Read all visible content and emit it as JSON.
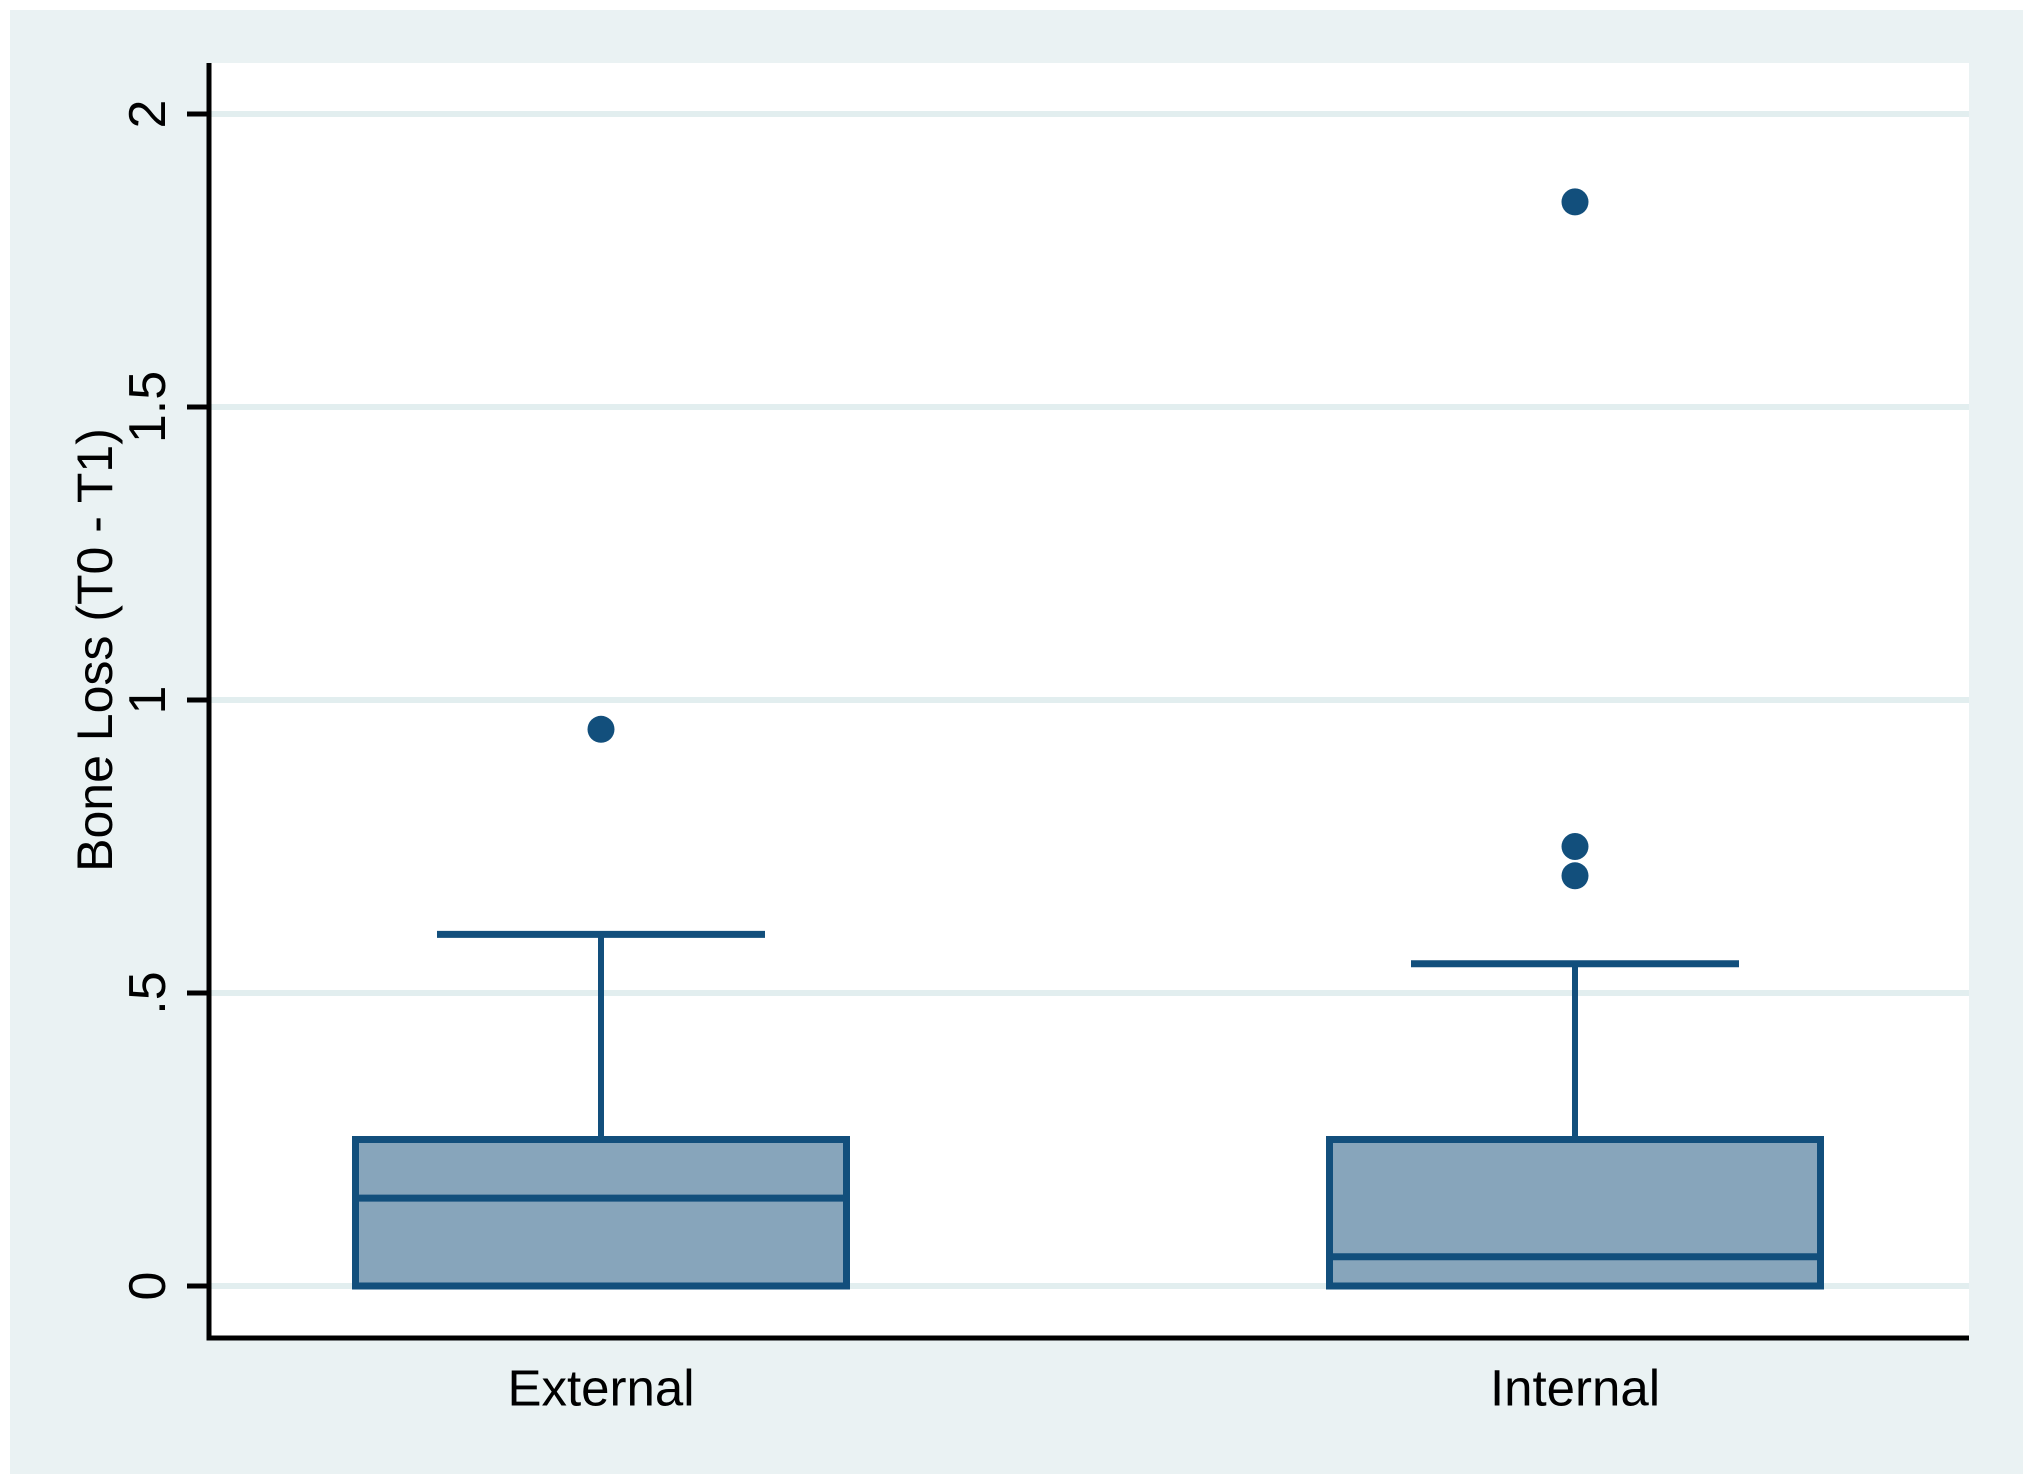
{
  "chart_data": {
    "type": "box",
    "title": "",
    "xlabel": "",
    "ylabel": "Bone Loss (T0 - T1)",
    "categories": [
      "External",
      "Internal"
    ],
    "yticks": [
      0,
      0.5,
      1,
      1.5,
      2
    ],
    "ytick_labels": [
      "0",
      ".5",
      "1",
      "1.5",
      "2"
    ],
    "ylim": [
      -0.09,
      2.09
    ],
    "grid": true,
    "legend": "none",
    "boxes": [
      {
        "category": "External",
        "q1": 0,
        "median": 0.15,
        "q3": 0.25,
        "whisker_low": 0,
        "whisker_high": 0.6,
        "outliers": [
          0.95
        ]
      },
      {
        "category": "Internal",
        "q1": 0,
        "median": 0.05,
        "q3": 0.25,
        "whisker_low": 0,
        "whisker_high": 0.55,
        "outliers": [
          0.7,
          0.75,
          1.85
        ]
      }
    ],
    "colors": {
      "line": "#124f7c",
      "box_fill": "#87a5bb",
      "canvas_background": "#eaf2f3",
      "plot_background": "#ffffff",
      "gridline": "#e2eeef",
      "axis": "#000000",
      "text": "#000000"
    }
  }
}
